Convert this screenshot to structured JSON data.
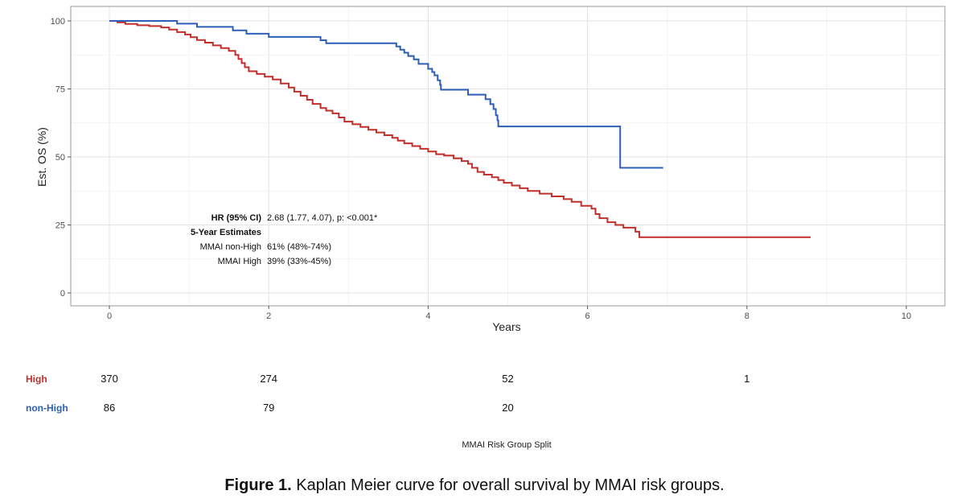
{
  "chart_data": {
    "type": "line",
    "step": true,
    "xlabel": "Years",
    "ylabel": "Est. OS (%)",
    "xlim": [
      0,
      10
    ],
    "ylim": [
      0,
      100
    ],
    "x_ticks": [
      "0",
      "2",
      "4",
      "6",
      "8",
      "10"
    ],
    "y_ticks": [
      "0",
      "25",
      "50",
      "75",
      "100"
    ],
    "grid": true,
    "series": [
      {
        "name": "non-High",
        "color": "#2c5fb5",
        "points": [
          [
            0,
            100
          ],
          [
            0.85,
            99
          ],
          [
            1.1,
            97.8
          ],
          [
            1.55,
            96.5
          ],
          [
            1.72,
            95.3
          ],
          [
            2.0,
            94.1
          ],
          [
            2.65,
            92.9
          ],
          [
            2.72,
            91.8
          ],
          [
            3.6,
            90.6
          ],
          [
            3.65,
            89.4
          ],
          [
            3.7,
            88.3
          ],
          [
            3.75,
            87.1
          ],
          [
            3.82,
            85.9
          ],
          [
            3.88,
            84.2
          ],
          [
            4.0,
            82.4
          ],
          [
            4.05,
            81.2
          ],
          [
            4.08,
            80.0
          ],
          [
            4.12,
            78.2
          ],
          [
            4.15,
            76.5
          ],
          [
            4.16,
            74.7
          ],
          [
            4.5,
            72.9
          ],
          [
            4.72,
            71.2
          ],
          [
            4.78,
            69.4
          ],
          [
            4.82,
            67.6
          ],
          [
            4.85,
            65.3
          ],
          [
            4.87,
            63.5
          ],
          [
            4.88,
            61.2
          ],
          [
            6.4,
            61.2
          ],
          [
            6.41,
            46.0
          ],
          [
            6.95,
            46.0
          ]
        ]
      },
      {
        "name": "High",
        "color": "#c22f2a",
        "points": [
          [
            0,
            100
          ],
          [
            0.1,
            99.5
          ],
          [
            0.2,
            98.9
          ],
          [
            0.35,
            98.4
          ],
          [
            0.5,
            98.1
          ],
          [
            0.65,
            97.6
          ],
          [
            0.75,
            96.8
          ],
          [
            0.85,
            95.9
          ],
          [
            0.95,
            95.0
          ],
          [
            1.02,
            94.0
          ],
          [
            1.1,
            93.0
          ],
          [
            1.2,
            92.0
          ],
          [
            1.3,
            91.0
          ],
          [
            1.4,
            90.0
          ],
          [
            1.5,
            89.0
          ],
          [
            1.58,
            87.5
          ],
          [
            1.62,
            86.0
          ],
          [
            1.66,
            84.5
          ],
          [
            1.7,
            83.0
          ],
          [
            1.75,
            81.5
          ],
          [
            1.85,
            80.5
          ],
          [
            1.95,
            79.5
          ],
          [
            2.05,
            78.5
          ],
          [
            2.15,
            77.0
          ],
          [
            2.25,
            75.5
          ],
          [
            2.32,
            74.0
          ],
          [
            2.4,
            72.5
          ],
          [
            2.48,
            71.0
          ],
          [
            2.55,
            69.5
          ],
          [
            2.65,
            68.0
          ],
          [
            2.72,
            67.0
          ],
          [
            2.8,
            66.0
          ],
          [
            2.88,
            64.5
          ],
          [
            2.95,
            63.0
          ],
          [
            3.05,
            62.0
          ],
          [
            3.15,
            61.0
          ],
          [
            3.25,
            60.0
          ],
          [
            3.35,
            59.0
          ],
          [
            3.45,
            58.0
          ],
          [
            3.55,
            57.0
          ],
          [
            3.62,
            56.0
          ],
          [
            3.7,
            55.0
          ],
          [
            3.8,
            54.0
          ],
          [
            3.9,
            53.0
          ],
          [
            4.0,
            52.0
          ],
          [
            4.1,
            51.0
          ],
          [
            4.2,
            50.5
          ],
          [
            4.32,
            49.5
          ],
          [
            4.42,
            48.5
          ],
          [
            4.5,
            47.5
          ],
          [
            4.55,
            46.0
          ],
          [
            4.62,
            44.5
          ],
          [
            4.7,
            43.5
          ],
          [
            4.8,
            42.5
          ],
          [
            4.88,
            41.5
          ],
          [
            4.95,
            40.5
          ],
          [
            5.05,
            39.5
          ],
          [
            5.15,
            38.5
          ],
          [
            5.25,
            37.5
          ],
          [
            5.4,
            36.5
          ],
          [
            5.55,
            35.5
          ],
          [
            5.7,
            34.5
          ],
          [
            5.8,
            33.5
          ],
          [
            5.92,
            32.0
          ],
          [
            6.05,
            31.0
          ],
          [
            6.1,
            29.0
          ],
          [
            6.15,
            27.5
          ],
          [
            6.25,
            26.0
          ],
          [
            6.35,
            25.0
          ],
          [
            6.45,
            24.0
          ],
          [
            6.6,
            22.5
          ],
          [
            6.65,
            20.5
          ],
          [
            8.8,
            20.5
          ]
        ]
      }
    ],
    "annotation": {
      "rows": [
        {
          "label": "HR (95% CI)",
          "value": "2.68 (1.77, 4.07), p: <0.001*",
          "bold": true
        },
        {
          "label": "5-Year Estimates",
          "value": "",
          "bold": true
        },
        {
          "label": "MMAI non-High",
          "value": "61% (48%-74%)",
          "bold": false
        },
        {
          "label": "MMAI High",
          "value": "39% (33%-45%)",
          "bold": false
        }
      ]
    },
    "risk_table": {
      "title": "MMAI Risk Group Split",
      "x": [
        0,
        2,
        5,
        8
      ],
      "rows": [
        {
          "label": "High",
          "color": "#c22f2a",
          "values": [
            "370",
            "274",
            "52",
            "1"
          ]
        },
        {
          "label": "non-High",
          "color": "#2c5fb5",
          "values": [
            "86",
            "79",
            "20",
            ""
          ]
        }
      ]
    }
  },
  "caption": {
    "prefix": "Figure 1.",
    "text": " Kaplan Meier curve for overall survival by MMAI risk groups."
  }
}
